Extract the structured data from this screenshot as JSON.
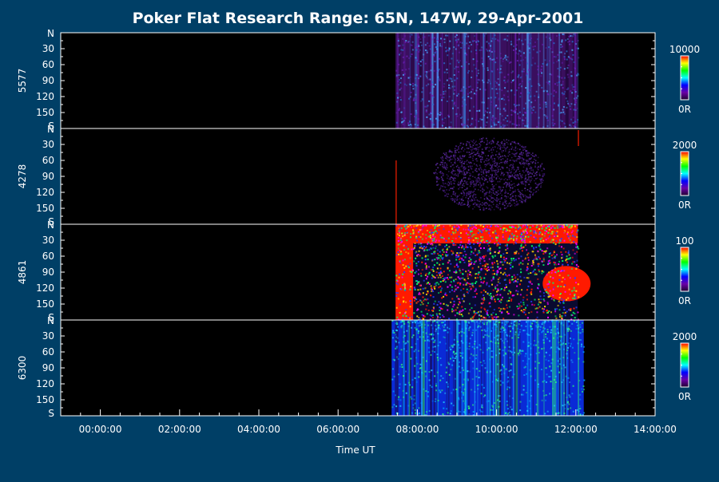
{
  "chart_data": {
    "type": "heatmap",
    "title": "Poker Flat Research Range: 65N, 147W, 29-Apr-2001",
    "xlabel": "Time UT",
    "x_ticks": [
      "00:00:00",
      "02:00:00",
      "04:00:00",
      "06:00:00",
      "08:00:00",
      "10:00:00",
      "12:00:00",
      "14:00:00"
    ],
    "x_range_hours": [
      -1.0,
      14.0
    ],
    "y_axis": {
      "top_label": "N",
      "bottom_label": "S",
      "ticks": [
        "30",
        "60",
        "90",
        "120",
        "150"
      ],
      "range_deg": [
        0,
        180
      ]
    },
    "data_window_hours": [
      7.4,
      12.15
    ],
    "panels": [
      {
        "channel": "5577",
        "scale_max": "10000",
        "scale_min": "0R",
        "data_span_hours": [
          7.45,
          12.05
        ],
        "texture": "dense",
        "base_color": "#3a0f5e",
        "accent_colors": [
          "#2a66c8",
          "#4aa8ff",
          "#6a1fb5"
        ],
        "description_level": "low intensity, uniform"
      },
      {
        "channel": "4278",
        "scale_max": "2000",
        "scale_min": "0R",
        "data_span_hours": [
          8.4,
          11.2
        ],
        "texture": "sparse-blob",
        "base_color": "#4a1a86",
        "accent_colors": [
          "#5a2a9e",
          "#3b1470"
        ],
        "description_level": "faint diffuse patch"
      },
      {
        "channel": "4861",
        "scale_max": "100",
        "scale_min": "0R",
        "data_span_hours": [
          7.45,
          12.05
        ],
        "texture": "saturated-noise",
        "base_color": "#ff1a00",
        "accent_colors": [
          "#00ff66",
          "#2a3cff",
          "#ffd400",
          "#ff00ff"
        ],
        "description_level": "saturated, noisy"
      },
      {
        "channel": "6300",
        "scale_max": "2000",
        "scale_min": "0R",
        "data_span_hours": [
          7.35,
          12.2
        ],
        "texture": "dense",
        "base_color": "#0a2ad6",
        "accent_colors": [
          "#22d0ff",
          "#2bff7a",
          "#00a0ff"
        ],
        "description_level": "moderate, brighter at top"
      }
    ],
    "colorbar_colors": [
      "#ff0000",
      "#ffff00",
      "#00ff00",
      "#00ffff",
      "#0000ff",
      "#6a00a8",
      "#200030"
    ]
  }
}
